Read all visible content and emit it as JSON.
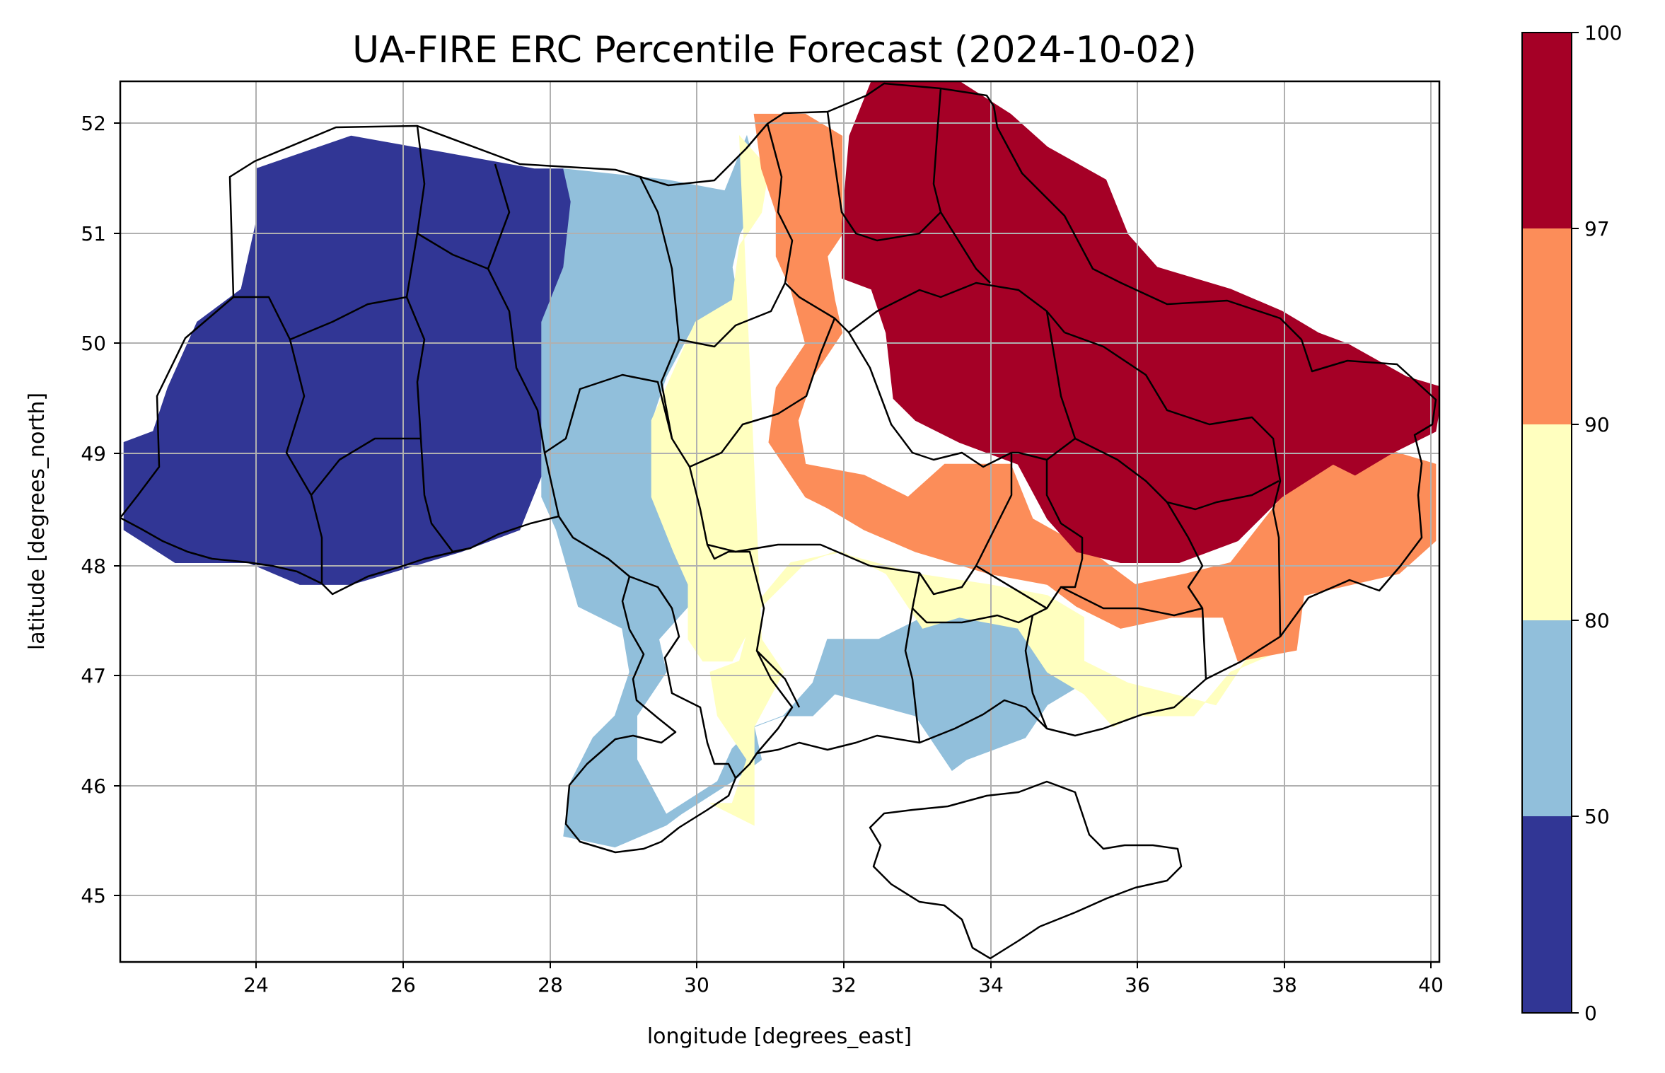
{
  "title": "UA-FIRE ERC Percentile Forecast (2024-10-02)",
  "map": {
    "xlabel": "longitude [degrees_east]",
    "ylabel": "latitude [degrees_north]",
    "lon_range": [
      22.15,
      40.15
    ],
    "lat_range": [
      44.35,
      52.4
    ],
    "x_ticks": [
      "24",
      "26",
      "28",
      "30",
      "32",
      "34",
      "36",
      "38",
      "40"
    ],
    "y_ticks": [
      "45",
      "46",
      "47",
      "48",
      "49",
      "50",
      "51",
      "52"
    ],
    "grid": true
  },
  "colorbar": {
    "boundaries": [
      0,
      50,
      80,
      90,
      97,
      100
    ],
    "tick_labels": [
      "0",
      "50",
      "80",
      "90",
      "97",
      "100"
    ],
    "colors": [
      "#313695",
      "#91bfdb",
      "#ffffbf",
      "#fc8d59",
      "#a50026"
    ]
  },
  "regions": [
    {
      "class": 0,
      "points": [
        [
          22.2,
          48.6
        ],
        [
          22.2,
          49.1
        ],
        [
          22.6,
          49.2
        ],
        [
          22.8,
          49.6
        ],
        [
          23.2,
          50.2
        ],
        [
          23.8,
          50.5
        ],
        [
          24.0,
          51.1
        ],
        [
          24.0,
          51.6
        ],
        [
          25.3,
          51.9
        ],
        [
          27.8,
          51.6
        ],
        [
          28.2,
          51.6
        ],
        [
          28.3,
          51.3
        ],
        [
          28.2,
          50.7
        ],
        [
          27.9,
          50.2
        ],
        [
          27.9,
          49.2
        ],
        [
          27.9,
          48.8
        ],
        [
          27.6,
          48.3
        ],
        [
          26.8,
          48.1
        ],
        [
          25.3,
          47.8
        ],
        [
          24.6,
          47.8
        ],
        [
          23.9,
          48.0
        ],
        [
          22.9,
          48.0
        ],
        [
          22.2,
          48.3
        ]
      ]
    },
    {
      "class": 1,
      "points": [
        [
          28.2,
          51.6
        ],
        [
          29.6,
          51.5
        ],
        [
          30.4,
          51.4
        ],
        [
          30.7,
          51.9
        ],
        [
          30.9,
          51.4
        ],
        [
          30.6,
          51.0
        ],
        [
          30.5,
          50.7
        ],
        [
          30.6,
          50.3
        ],
        [
          30.0,
          50.2
        ],
        [
          29.6,
          49.7
        ],
        [
          29.4,
          49.3
        ],
        [
          29.4,
          48.6
        ],
        [
          29.7,
          48.1
        ],
        [
          29.9,
          47.8
        ],
        [
          29.9,
          47.6
        ],
        [
          29.5,
          47.3
        ],
        [
          29.6,
          47.0
        ],
        [
          29.2,
          46.6
        ],
        [
          29.2,
          46.2
        ],
        [
          29.6,
          45.7
        ],
        [
          30.3,
          46.0
        ],
        [
          30.5,
          46.3
        ],
        [
          30.8,
          46.5
        ],
        [
          31.2,
          46.6
        ],
        [
          31.6,
          46.9
        ],
        [
          31.8,
          47.3
        ],
        [
          32.5,
          47.3
        ],
        [
          33.1,
          47.5
        ],
        [
          34.4,
          47.6
        ],
        [
          34.8,
          47.5
        ],
        [
          35.1,
          47.3
        ],
        [
          35.3,
          46.9
        ],
        [
          34.8,
          46.7
        ],
        [
          34.5,
          46.4
        ],
        [
          33.7,
          46.2
        ],
        [
          33.5,
          46.1
        ],
        [
          33.0,
          46.6
        ],
        [
          31.9,
          46.8
        ],
        [
          31.6,
          46.6
        ],
        [
          31.2,
          46.6
        ],
        [
          30.8,
          46.5
        ],
        [
          30.9,
          46.2
        ],
        [
          30.5,
          46.0
        ],
        [
          29.8,
          45.7
        ],
        [
          29.6,
          45.6
        ],
        [
          28.9,
          45.4
        ],
        [
          28.2,
          45.5
        ],
        [
          28.3,
          46.0
        ],
        [
          28.6,
          46.4
        ],
        [
          28.9,
          46.6
        ],
        [
          29.1,
          47.0
        ],
        [
          29.0,
          47.4
        ],
        [
          28.4,
          47.6
        ],
        [
          28.1,
          48.3
        ],
        [
          27.9,
          48.6
        ],
        [
          27.9,
          49.3
        ],
        [
          27.9,
          50.2
        ],
        [
          28.2,
          50.7
        ],
        [
          28.3,
          51.3
        ]
      ]
    },
    {
      "class": 2,
      "points": [
        [
          30.6,
          51.9
        ],
        [
          31.0,
          51.6
        ],
        [
          30.9,
          51.2
        ],
        [
          30.6,
          50.9
        ],
        [
          30.5,
          50.4
        ],
        [
          30.0,
          50.2
        ],
        [
          29.6,
          49.6
        ],
        [
          29.4,
          49.3
        ],
        [
          29.4,
          48.6
        ],
        [
          29.7,
          48.1
        ],
        [
          29.9,
          47.8
        ],
        [
          29.9,
          47.3
        ],
        [
          30.1,
          47.1
        ],
        [
          30.5,
          47.1
        ],
        [
          30.9,
          47.6
        ],
        [
          31.5,
          48.0
        ],
        [
          31.9,
          48.1
        ],
        [
          33.0,
          47.9
        ],
        [
          34.0,
          47.8
        ],
        [
          34.8,
          47.7
        ],
        [
          35.3,
          47.5
        ],
        [
          35.3,
          47.1
        ],
        [
          35.9,
          46.9
        ],
        [
          36.5,
          46.8
        ],
        [
          37.1,
          46.7
        ],
        [
          37.5,
          47.1
        ],
        [
          37.8,
          47.3
        ],
        [
          38.0,
          47.2
        ],
        [
          37.3,
          47.0
        ],
        [
          36.8,
          46.6
        ],
        [
          36.0,
          46.6
        ],
        [
          35.7,
          46.5
        ],
        [
          35.3,
          46.8
        ],
        [
          34.8,
          47.0
        ],
        [
          34.4,
          47.4
        ],
        [
          33.6,
          47.5
        ],
        [
          33.1,
          47.4
        ],
        [
          32.6,
          47.9
        ],
        [
          32.0,
          48.1
        ],
        [
          31.3,
          48.0
        ],
        [
          30.8,
          47.6
        ],
        [
          30.6,
          47.1
        ],
        [
          30.2,
          47.0
        ],
        [
          30.3,
          46.6
        ],
        [
          30.7,
          46.2
        ],
        [
          30.5,
          45.8
        ],
        [
          30.2,
          45.8
        ],
        [
          30.8,
          45.6
        ],
        [
          30.8,
          46.5
        ],
        [
          31.2,
          47.0
        ],
        [
          30.9,
          47.3
        ]
      ]
    },
    {
      "class": 3,
      "points": [
        [
          30.8,
          52.1
        ],
        [
          31.5,
          52.1
        ],
        [
          32.0,
          51.9
        ],
        [
          32.0,
          51.0
        ],
        [
          31.8,
          50.8
        ],
        [
          31.9,
          50.4
        ],
        [
          32.0,
          50.1
        ],
        [
          31.6,
          49.7
        ],
        [
          31.4,
          49.3
        ],
        [
          31.5,
          48.9
        ],
        [
          32.3,
          48.8
        ],
        [
          32.9,
          48.6
        ],
        [
          33.4,
          48.9
        ],
        [
          34.3,
          48.9
        ],
        [
          34.6,
          48.4
        ],
        [
          35.4,
          48.1
        ],
        [
          36.0,
          47.8
        ],
        [
          36.7,
          47.9
        ],
        [
          37.3,
          48.0
        ],
        [
          38.0,
          48.6
        ],
        [
          38.8,
          49.2
        ],
        [
          39.6,
          49.0
        ],
        [
          40.1,
          48.9
        ],
        [
          40.1,
          48.2
        ],
        [
          39.6,
          47.9
        ],
        [
          38.3,
          47.7
        ],
        [
          38.2,
          47.2
        ],
        [
          37.4,
          47.1
        ],
        [
          37.2,
          47.5
        ],
        [
          36.5,
          47.5
        ],
        [
          35.8,
          47.4
        ],
        [
          35.2,
          47.6
        ],
        [
          34.8,
          47.8
        ],
        [
          34.0,
          47.9
        ],
        [
          33.0,
          48.1
        ],
        [
          32.3,
          48.3
        ],
        [
          31.8,
          48.5
        ],
        [
          31.5,
          48.6
        ],
        [
          31.0,
          49.1
        ],
        [
          31.1,
          49.6
        ],
        [
          31.5,
          50.0
        ],
        [
          31.3,
          50.5
        ],
        [
          31.1,
          50.8
        ],
        [
          31.1,
          51.2
        ],
        [
          30.9,
          51.6
        ]
      ]
    },
    {
      "class": 4,
      "points": [
        [
          32.4,
          52.4
        ],
        [
          33.6,
          52.4
        ],
        [
          34.3,
          52.1
        ],
        [
          34.8,
          51.8
        ],
        [
          35.6,
          51.5
        ],
        [
          35.9,
          51.0
        ],
        [
          36.3,
          50.7
        ],
        [
          37.3,
          50.5
        ],
        [
          38.0,
          50.3
        ],
        [
          38.5,
          50.1
        ],
        [
          38.9,
          50.0
        ],
        [
          39.7,
          49.7
        ],
        [
          40.2,
          49.6
        ],
        [
          40.1,
          49.2
        ],
        [
          39.5,
          49.0
        ],
        [
          39.0,
          48.8
        ],
        [
          38.7,
          48.9
        ],
        [
          38.0,
          48.6
        ],
        [
          37.4,
          48.2
        ],
        [
          36.6,
          48.0
        ],
        [
          35.8,
          48.0
        ],
        [
          35.2,
          48.1
        ],
        [
          34.8,
          48.4
        ],
        [
          34.4,
          48.9
        ],
        [
          33.6,
          49.1
        ],
        [
          33.0,
          49.3
        ],
        [
          32.7,
          49.5
        ],
        [
          32.6,
          50.1
        ],
        [
          32.4,
          50.5
        ],
        [
          32.0,
          50.6
        ],
        [
          32.0,
          51.1
        ],
        [
          32.1,
          51.9
        ]
      ]
    }
  ]
}
